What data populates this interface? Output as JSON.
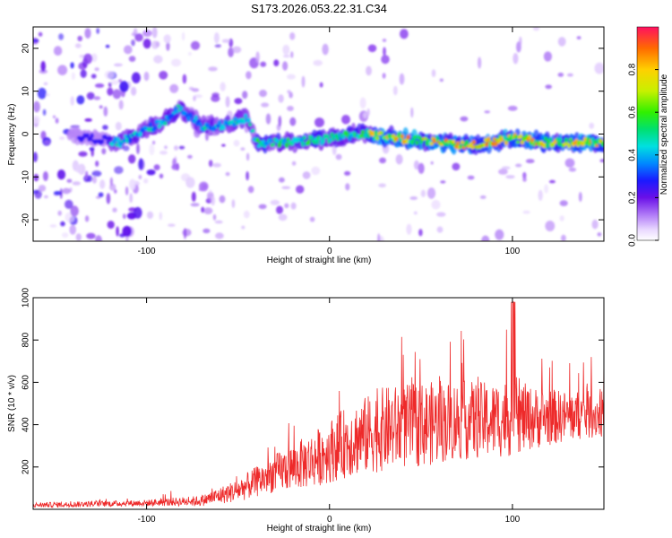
{
  "title": "S173.2026.053.22.31.C34",
  "chart_data": [
    {
      "type": "heatmap",
      "name": "spectrogram",
      "xlabel": "Height of straight line (km)",
      "ylabel": "Frequency (Hz)",
      "xlim": [
        -162,
        150
      ],
      "ylim": [
        -25,
        25
      ],
      "xticks": [
        -100,
        0,
        100
      ],
      "yticks": [
        -20,
        -10,
        0,
        10,
        20
      ],
      "colorbar": {
        "label": "Normalized spectral amplitude",
        "range": [
          0,
          1
        ],
        "ticks": [
          0.0,
          0.2,
          0.4,
          0.6,
          0.8
        ]
      },
      "ridge_frequency_hz": [
        {
          "x": -130,
          "y": -1
        },
        {
          "x": -115,
          "y": -2
        },
        {
          "x": -100,
          "y": 1
        },
        {
          "x": -90,
          "y": 3
        },
        {
          "x": -82,
          "y": 6
        },
        {
          "x": -70,
          "y": 2
        },
        {
          "x": -55,
          "y": 2
        },
        {
          "x": -45,
          "y": 4
        },
        {
          "x": -40,
          "y": -2
        },
        {
          "x": -20,
          "y": -2
        },
        {
          "x": 0,
          "y": -1
        },
        {
          "x": 20,
          "y": 0
        },
        {
          "x": 40,
          "y": -1
        },
        {
          "x": 60,
          "y": -2
        },
        {
          "x": 80,
          "y": -2.5
        },
        {
          "x": 100,
          "y": -1
        },
        {
          "x": 120,
          "y": -2
        },
        {
          "x": 150,
          "y": -2
        }
      ]
    },
    {
      "type": "line",
      "name": "snr",
      "color": "#ee2a2a",
      "xlabel": "Height of straight line (km)",
      "ylabel": "SNR (10 * v/v)",
      "xlim": [
        -162,
        150
      ],
      "ylim": [
        0,
        1000
      ],
      "xticks": [
        -100,
        0,
        100
      ],
      "yticks": [
        200,
        400,
        600,
        800,
        1000
      ],
      "envelope": {
        "x": [
          -162,
          -100,
          -70,
          -50,
          -30,
          -10,
          10,
          30,
          50,
          70,
          90,
          100,
          110,
          130,
          150
        ],
        "mean": [
          20,
          30,
          40,
          90,
          170,
          230,
          320,
          380,
          400,
          420,
          420,
          440,
          430,
          440,
          450
        ],
        "spread": [
          12,
          15,
          25,
          55,
          90,
          130,
          170,
          200,
          200,
          190,
          180,
          190,
          150,
          120,
          110
        ]
      }
    }
  ]
}
